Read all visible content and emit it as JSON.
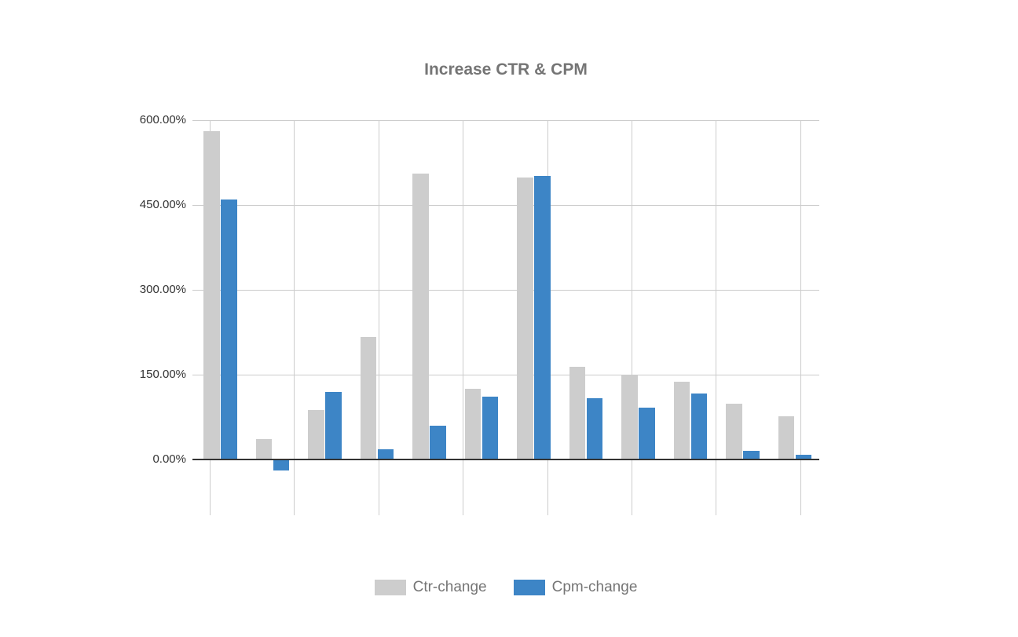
{
  "chart": {
    "title": "Increase CTR & CPM",
    "y_axis": {
      "tick_labels": [
        "600.00%",
        "450.00%",
        "300.00%",
        "150.00%",
        "0.00%"
      ]
    },
    "legend": {
      "items": [
        {
          "label": "Ctr-change"
        },
        {
          "label": "Cpm-change"
        }
      ]
    }
  },
  "colors": {
    "background": "#ffffff",
    "ctr_series": "#cdcdcd",
    "cpm_series": "#3d85c6",
    "gridline": "#cccccc",
    "axis_line": "#333333",
    "title_text": "#757575",
    "legend_text": "#757575",
    "tick_label_text": "#333333"
  },
  "chart_data": {
    "type": "bar",
    "title": "Increase CTR & CPM",
    "unit": "percent",
    "categories": [
      "",
      "",
      "",
      "",
      "",
      "",
      "",
      "",
      "",
      "",
      "",
      ""
    ],
    "x_axis_labels_visible": false,
    "series": [
      {
        "name": "Ctr-change",
        "color": "#cdcdcd",
        "values": [
          581,
          36,
          88,
          217,
          505,
          125,
          499,
          164,
          149,
          137,
          99,
          77
        ]
      },
      {
        "name": "Cpm-change",
        "color": "#3d85c6",
        "values": [
          460,
          -19,
          119,
          18,
          60,
          111,
          502,
          108,
          92,
          117,
          15,
          9
        ]
      }
    ],
    "xlabel": "",
    "ylabel": "",
    "y_ticks_percent": [
      600,
      450,
      300,
      150,
      0
    ],
    "y_tick_labels": [
      "600.00%",
      "450.00%",
      "300.00%",
      "150.00%",
      "0.00%"
    ],
    "ylim": [
      -97,
      600
    ],
    "grid": true,
    "legend_position": "bottom"
  }
}
